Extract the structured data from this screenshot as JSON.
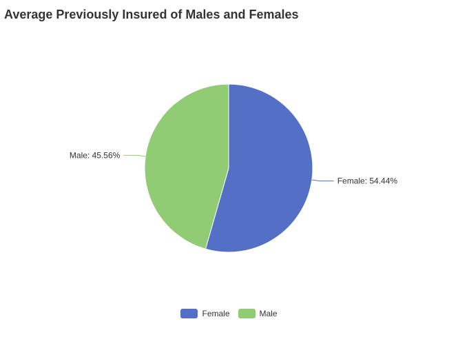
{
  "chart_data": {
    "type": "pie",
    "title": "Average Previously Insured of Males and Females",
    "categories": [
      "Female",
      "Male"
    ],
    "values": [
      54.44,
      45.56
    ],
    "labels": [
      "Female: 54.44%",
      "Male: 45.56%"
    ],
    "colors": [
      "#5470c6",
      "#91cc75"
    ],
    "legend_position": "bottom-center"
  }
}
